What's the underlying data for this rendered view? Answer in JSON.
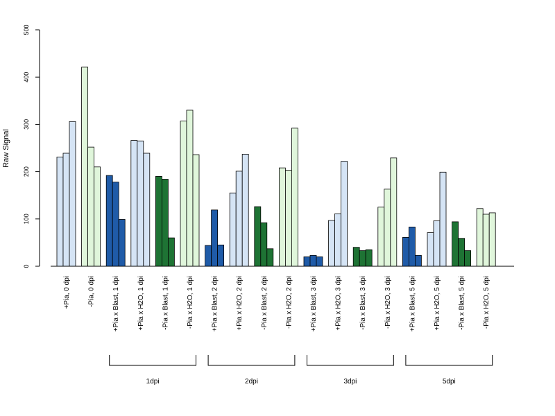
{
  "chart_data": {
    "type": "bar",
    "ylabel": "Raw Signal",
    "ylim": [
      0,
      500
    ],
    "yticks": [
      0,
      100,
      200,
      300,
      400,
      500
    ],
    "grid": false,
    "legend": "none",
    "categories": [
      "+Pia, 0 dpi",
      "-Pia, 0 dpi",
      "+Pia x Blast, 1 dpi",
      "+Pia x H2O, 1 dpi",
      "-Pia x Blast, 1 dpi",
      "-Pia x H2O, 1 dpi",
      "+Pia x Blast, 2 dpi",
      "+Pia x H2O, 2 dpi",
      "-Pia x Blast, 2 dpi",
      "-Pia x H2O, 2 dpi",
      "+Pia x Blast, 3 dpi",
      "+Pia x H2O, 3 dpi",
      "-Pia x Blast, 3 dpi",
      "-Pia x H2O, 3 dpi",
      "+Pia x Blast, 5 dpi",
      "+Pia x H2O, 5 dpi",
      "-Pia x Blast, 5 dpi",
      "-Pia x H2O, 5 dpi"
    ],
    "values": [
      [
        231,
        239,
        306
      ],
      [
        421,
        252,
        210
      ],
      [
        192,
        178,
        99
      ],
      [
        266,
        265,
        239
      ],
      [
        190,
        184,
        60
      ],
      [
        307,
        330,
        236
      ],
      [
        44,
        119,
        45
      ],
      [
        155,
        201,
        237
      ],
      [
        126,
        92,
        37
      ],
      [
        208,
        203,
        292
      ],
      [
        20,
        23,
        20
      ],
      [
        97,
        111,
        222
      ],
      [
        40,
        33,
        35
      ],
      [
        125,
        163,
        229
      ],
      [
        61,
        83,
        23
      ],
      [
        71,
        96,
        199
      ],
      [
        94,
        59,
        33
      ],
      [
        122,
        110,
        113
      ]
    ],
    "colors": [
      "#d5e4f5",
      "#e0f6db",
      "#1f5ba8",
      "#d5e4f5",
      "#1e7334",
      "#e0f6db",
      "#1f5ba8",
      "#d5e4f5",
      "#1e7334",
      "#e0f6db",
      "#1f5ba8",
      "#d5e4f5",
      "#1e7334",
      "#e0f6db",
      "#1f5ba8",
      "#d5e4f5",
      "#1e7334",
      "#e0f6db"
    ],
    "groups": [
      {
        "label": "1dpi",
        "first": 2,
        "last": 5
      },
      {
        "label": "2dpi",
        "first": 6,
        "last": 9
      },
      {
        "label": "3dpi",
        "first": 10,
        "last": 13
      },
      {
        "label": "5dpi",
        "first": 14,
        "last": 17
      }
    ]
  }
}
